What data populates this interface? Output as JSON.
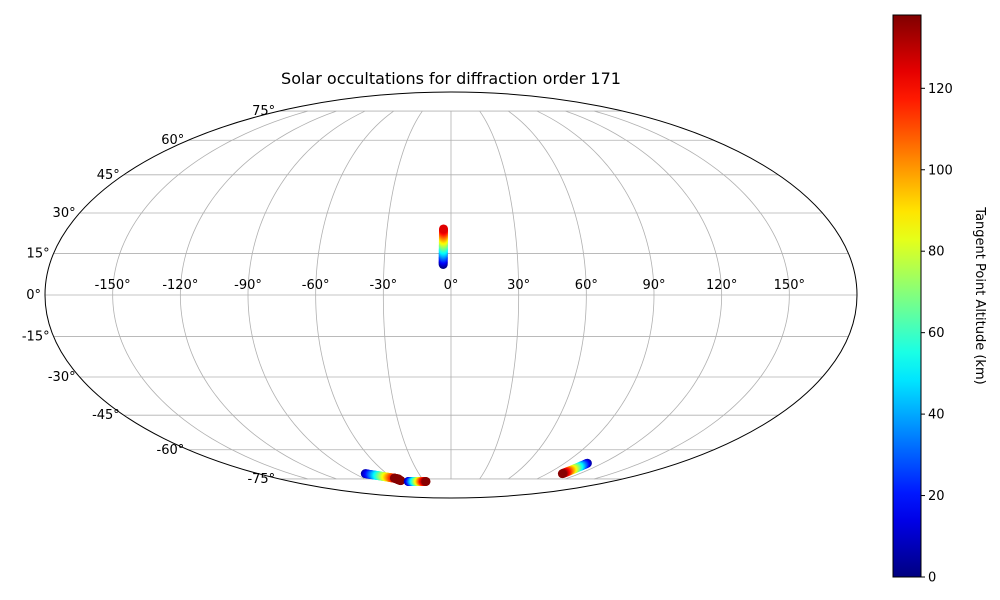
{
  "chart_data": {
    "type": "scatter",
    "projection": "Mollweide",
    "title": "Solar occultations for diffraction order 171",
    "grid": true,
    "lon_ticks": [
      -150,
      -120,
      -90,
      -60,
      -30,
      0,
      30,
      60,
      90,
      120,
      150
    ],
    "lon_tick_labels": [
      "-150°",
      "-120°",
      "-90°",
      "-60°",
      "-30°",
      "0°",
      "30°",
      "60°",
      "90°",
      "120°",
      "150°"
    ],
    "lat_ticks": [
      75,
      60,
      45,
      30,
      15,
      0,
      -15,
      -30,
      -45,
      -60,
      -75
    ],
    "lat_tick_labels": [
      "75°",
      "60°",
      "45°",
      "30°",
      "15°",
      "0°",
      "-15°",
      "-30°",
      "-45°",
      "-60°",
      "-75°"
    ],
    "colorbar": {
      "label": "Tangent Point Altitude (km)",
      "colormap": "jet",
      "range": [
        0,
        138
      ],
      "ticks": [
        0,
        20,
        40,
        60,
        80,
        100,
        120
      ],
      "tick_labels": [
        "0",
        "20",
        "40",
        "60",
        "80",
        "100",
        "120"
      ]
    },
    "tracks": [
      {
        "lon_start": -3.5,
        "lat_start": 11.0,
        "lon_end": -3.5,
        "lat_end": 24.0,
        "alt_start": 0,
        "alt_end": 125
      },
      {
        "lon_start": -80,
        "lat_start": -72.0,
        "lon_end": -55,
        "lat_end": -75.0,
        "alt_start": 5,
        "alt_end": 137
      },
      {
        "lon_start": -58,
        "lat_start": -74.5,
        "lon_end": -55,
        "lat_end": -76.0,
        "alt_start": 137,
        "alt_end": 137
      },
      {
        "lon_start": -48,
        "lat_start": -76.5,
        "lon_end": -28,
        "lat_end": -76.5,
        "alt_start": 5,
        "alt_end": 137
      },
      {
        "lon_start": 108,
        "lat_start": -66.5,
        "lon_end": 104,
        "lat_end": -72.0,
        "alt_start": 5,
        "alt_end": 137
      }
    ]
  }
}
